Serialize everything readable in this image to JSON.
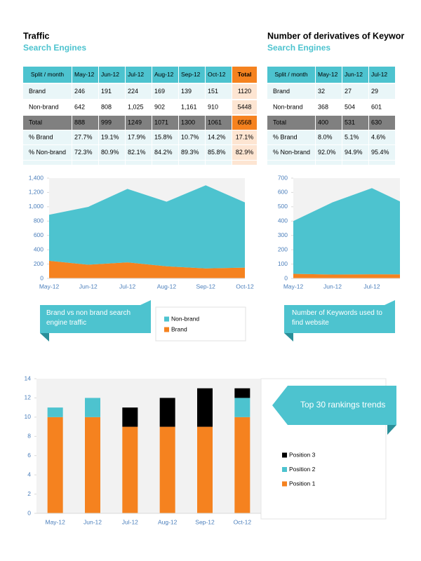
{
  "header": {
    "left_title": "Traffic",
    "left_subtitle": "Search Engines",
    "right_title": "Number of derivatives of Keywor",
    "right_subtitle": "Search Engines"
  },
  "tables": [
    {
      "columns": [
        "Split / month",
        "May-12",
        "Jun-12",
        "Jul-12",
        "Aug-12",
        "Sep-12",
        "Oct-12",
        "Total"
      ],
      "rows": [
        [
          "Brand",
          "246",
          "191",
          "224",
          "169",
          "139",
          "151",
          "1120"
        ],
        [
          "Non-brand",
          "642",
          "808",
          "1,025",
          "902",
          "1,161",
          "910",
          "5448"
        ],
        [
          "Total",
          "888",
          "999",
          "1249",
          "1071",
          "1300",
          "1061",
          "6568"
        ],
        [
          "% Brand",
          "27.7%",
          "19.1%",
          "17.9%",
          "15.8%",
          "10.7%",
          "14.2%",
          "17.1%"
        ],
        [
          "% Non-brand",
          "72.3%",
          "80.9%",
          "82.1%",
          "84.2%",
          "89.3%",
          "85.8%",
          "82.9%"
        ]
      ]
    },
    {
      "columns": [
        "Split / month",
        "May-12",
        "Jun-12",
        "Jul-12"
      ],
      "rows": [
        [
          "Brand",
          "32",
          "27",
          "29"
        ],
        [
          "Non-brand",
          "368",
          "504",
          "601"
        ],
        [
          "Total",
          "400",
          "531",
          "630"
        ],
        [
          "% Brand",
          "8.0%",
          "5.1%",
          "4.6%"
        ],
        [
          "% Non-brand",
          "92.0%",
          "94.9%",
          "95.4%"
        ]
      ]
    }
  ],
  "chart_data": [
    {
      "type": "area",
      "stacked": true,
      "categories": [
        "May-12",
        "Jun-12",
        "Jul-12",
        "Aug-12",
        "Sep-12",
        "Oct-12"
      ],
      "series": [
        {
          "name": "Brand",
          "color": "#f5821f",
          "values": [
            246,
            191,
            224,
            169,
            139,
            151
          ]
        },
        {
          "name": "Non-brand",
          "color": "#4dc3cf",
          "values": [
            642,
            808,
            1025,
            902,
            1161,
            910
          ]
        }
      ],
      "ylim": [
        0,
        1400
      ],
      "yticks": [
        0,
        200,
        400,
        600,
        800,
        {
          "value": 1000,
          "label": "1,000"
        },
        {
          "value": 1200,
          "label": "1,200"
        },
        {
          "value": 1400,
          "label": "1,400"
        }
      ],
      "annotation": "Brand vs non brand search engine traffic",
      "legend": "bottom-right"
    },
    {
      "type": "area",
      "stacked": true,
      "categories": [
        "May-12",
        "Jun-12",
        "Jul-12",
        null
      ],
      "series": [
        {
          "color": "#f5821f",
          "values": [
            32,
            27,
            29,
            28
          ]
        },
        {
          "color": "#4dc3cf",
          "values": [
            368,
            504,
            601,
            472
          ]
        }
      ],
      "ylim": [
        0,
        700
      ],
      "yticks": [
        0,
        100,
        200,
        300,
        400,
        500,
        600,
        700
      ],
      "annotation": "Number of Keywords used to find website"
    },
    {
      "type": "bar",
      "stacked": true,
      "categories": [
        "May-12",
        "Jun-12",
        "Jul-12",
        "Aug-12",
        "Sep-12",
        "Oct-12"
      ],
      "series": [
        {
          "name": "Position 1",
          "color": "#f5821f",
          "values": [
            10,
            10,
            9,
            9,
            9,
            10
          ]
        },
        {
          "name": "Position 2",
          "color": "#4dc3cf",
          "values": [
            1,
            2,
            0,
            0,
            0,
            2
          ]
        },
        {
          "name": "Position 3",
          "color": "#000000",
          "values": [
            0,
            0,
            2,
            3,
            4,
            1
          ]
        }
      ],
      "ylim": [
        0,
        14
      ],
      "yticks": [
        0,
        2,
        4,
        6,
        8,
        10,
        12,
        14
      ],
      "annotation": "Top 30 rankings trends",
      "legend": "right"
    }
  ]
}
